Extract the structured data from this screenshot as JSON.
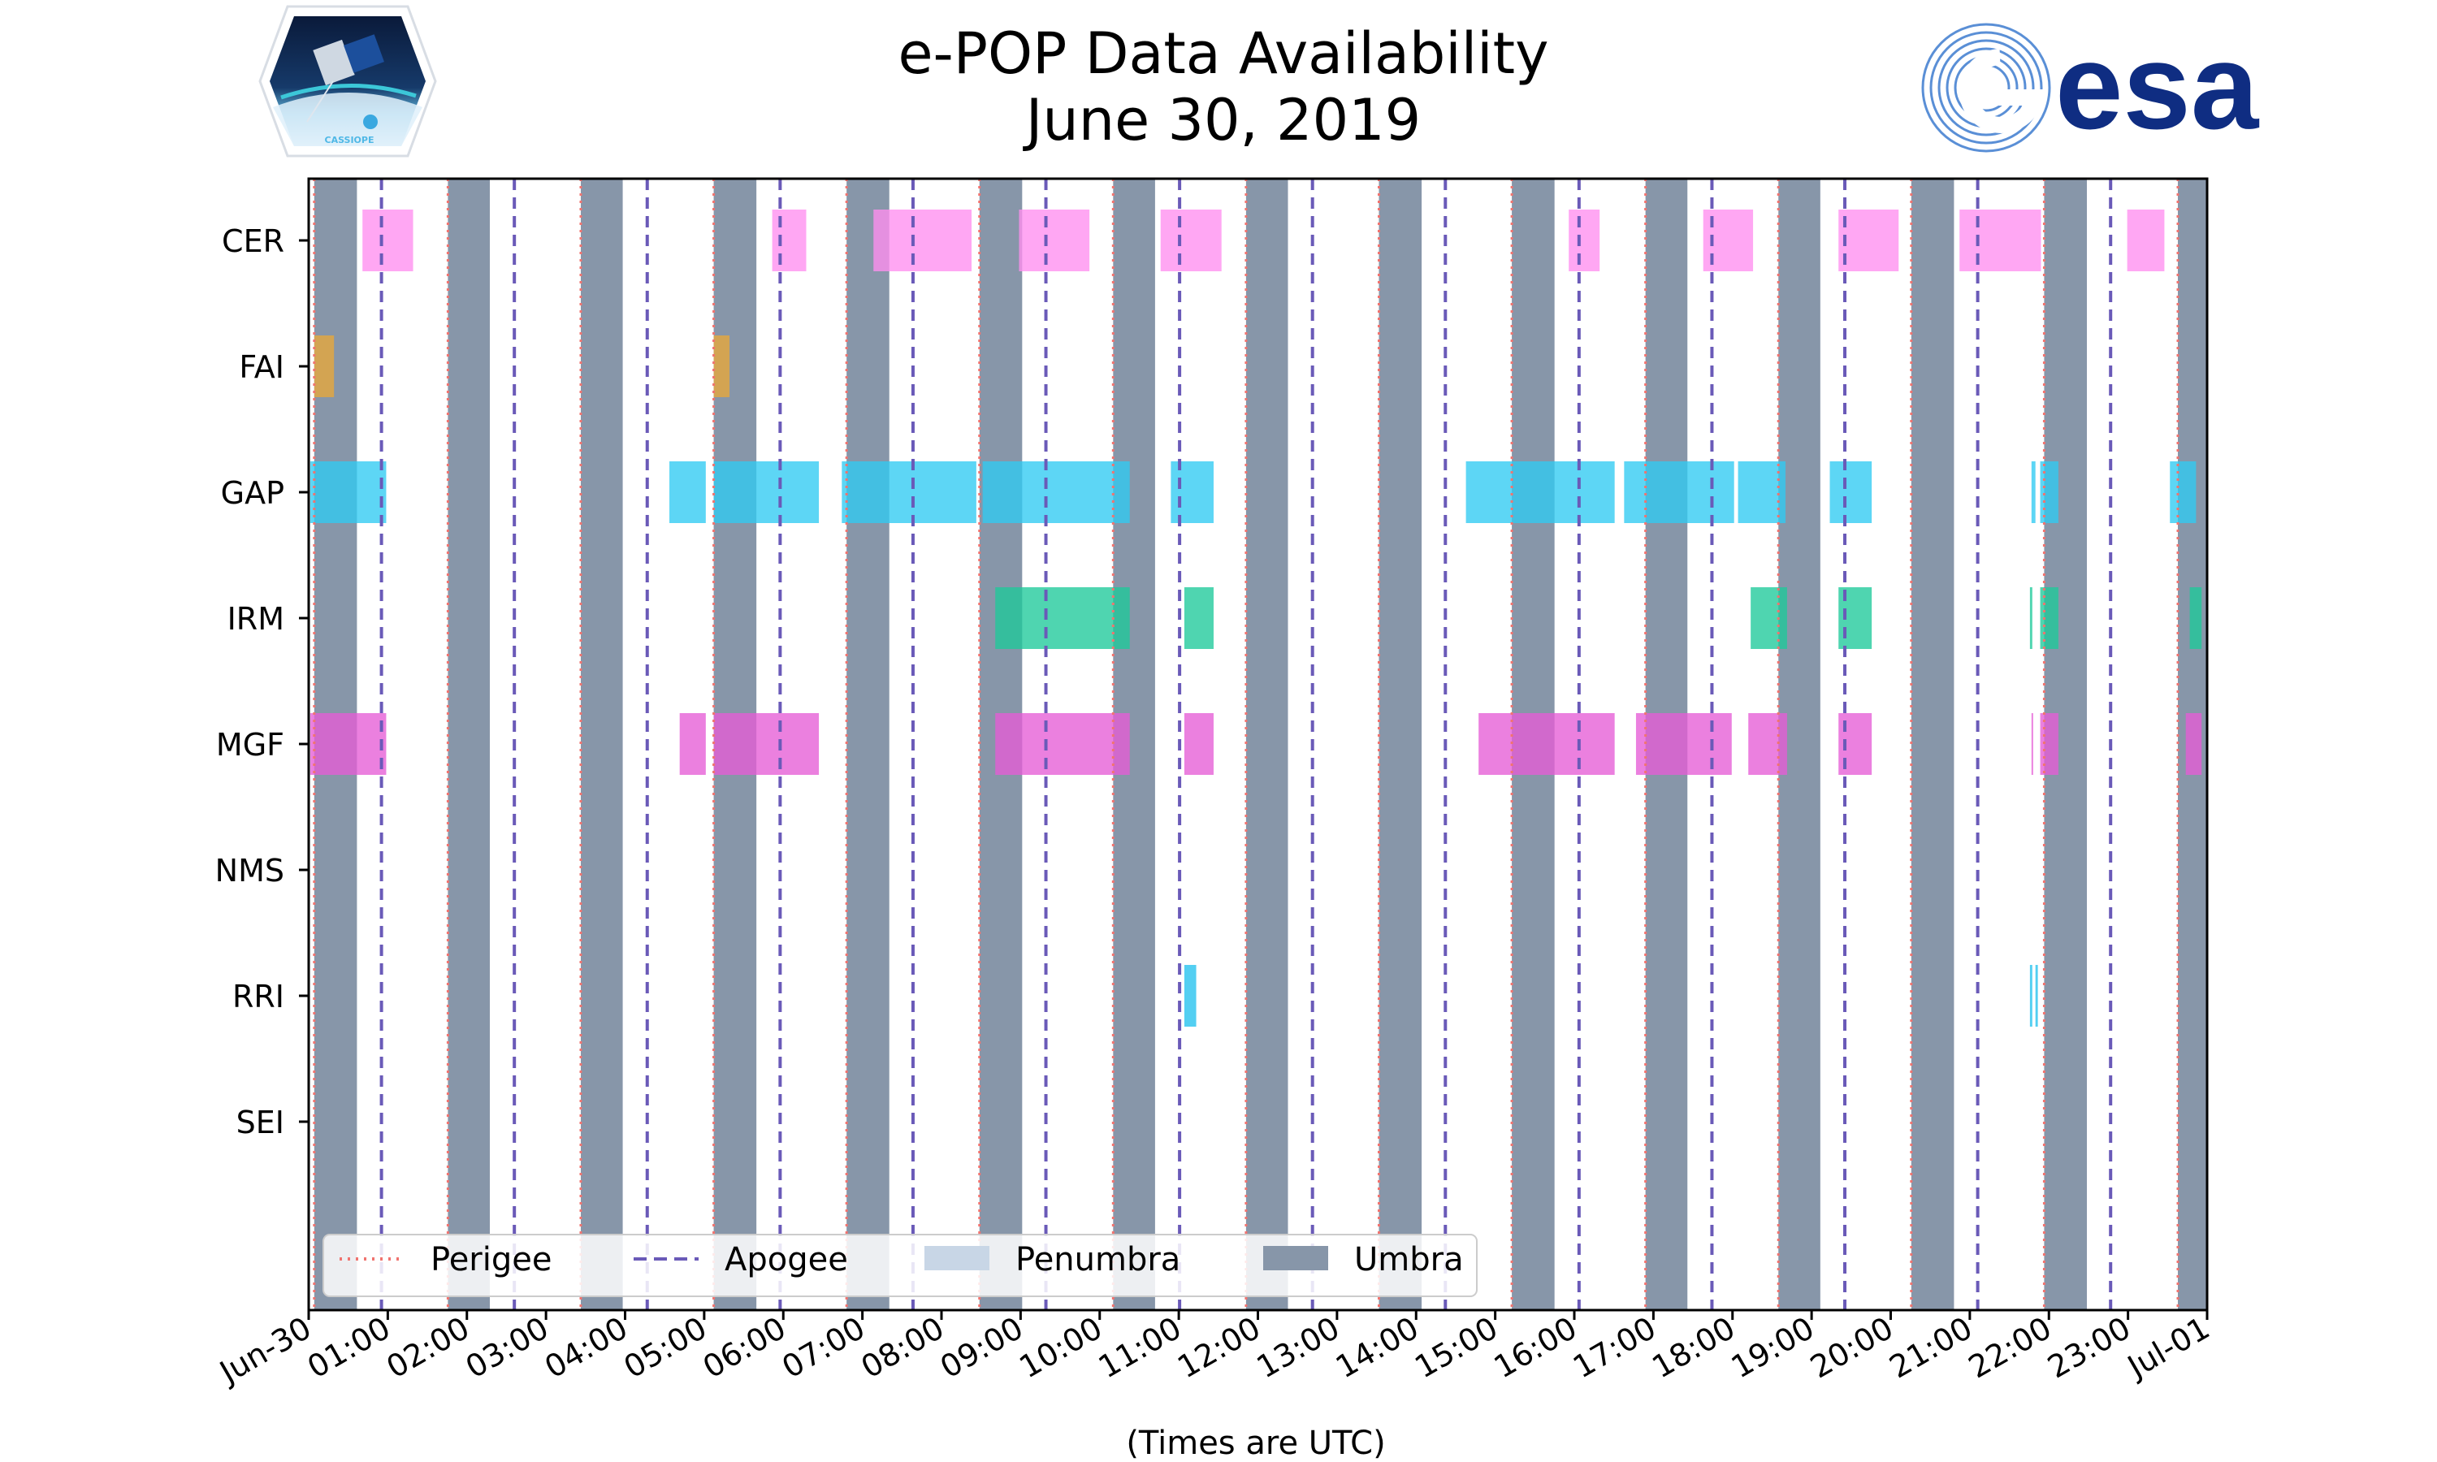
{
  "chart_data": {
    "type": "timeline",
    "title": "e-POP Data Availability",
    "subtitle": "June 30, 2019",
    "xlabel": "(Times are UTC)",
    "x_unit": "hours since 2019-06-30 00:00 UTC",
    "xlim": [
      0,
      24
    ],
    "x_ticks": [
      {
        "value": 0,
        "label": "Jun-30"
      },
      {
        "value": 1,
        "label": "01:00"
      },
      {
        "value": 2,
        "label": "02:00"
      },
      {
        "value": 3,
        "label": "03:00"
      },
      {
        "value": 4,
        "label": "04:00"
      },
      {
        "value": 5,
        "label": "05:00"
      },
      {
        "value": 6,
        "label": "06:00"
      },
      {
        "value": 7,
        "label": "07:00"
      },
      {
        "value": 8,
        "label": "08:00"
      },
      {
        "value": 9,
        "label": "09:00"
      },
      {
        "value": 10,
        "label": "10:00"
      },
      {
        "value": 11,
        "label": "11:00"
      },
      {
        "value": 12,
        "label": "12:00"
      },
      {
        "value": 13,
        "label": "13:00"
      },
      {
        "value": 14,
        "label": "14:00"
      },
      {
        "value": 15,
        "label": "15:00"
      },
      {
        "value": 16,
        "label": "16:00"
      },
      {
        "value": 17,
        "label": "17:00"
      },
      {
        "value": 18,
        "label": "18:00"
      },
      {
        "value": 19,
        "label": "19:00"
      },
      {
        "value": 20,
        "label": "20:00"
      },
      {
        "value": 21,
        "label": "21:00"
      },
      {
        "value": 22,
        "label": "22:00"
      },
      {
        "value": 23,
        "label": "23:00"
      },
      {
        "value": 24,
        "label": "Jul-01"
      }
    ],
    "instruments": [
      "CER",
      "FAI",
      "GAP",
      "IRM",
      "MGF",
      "NMS",
      "RRI",
      "SEI"
    ],
    "perigee": [
      0.07,
      1.76,
      3.44,
      5.12,
      6.8,
      8.48,
      10.17,
      11.85,
      13.53,
      15.21,
      16.9,
      18.58,
      20.26,
      21.94,
      23.63
    ],
    "apogee": [
      0.92,
      2.6,
      4.28,
      5.96,
      7.64,
      9.32,
      11.01,
      12.69,
      14.37,
      16.06,
      17.74,
      19.42,
      21.1,
      22.78
    ],
    "umbra": [
      [
        0.07,
        0.61
      ],
      [
        1.76,
        2.29
      ],
      [
        3.44,
        3.97
      ],
      [
        5.12,
        5.66
      ],
      [
        6.8,
        7.34
      ],
      [
        8.48,
        9.02
      ],
      [
        10.17,
        10.7
      ],
      [
        11.85,
        12.38
      ],
      [
        13.53,
        14.07
      ],
      [
        15.21,
        15.75
      ],
      [
        16.9,
        17.43
      ],
      [
        18.58,
        19.11
      ],
      [
        20.26,
        20.8
      ],
      [
        21.94,
        22.48
      ],
      [
        23.63,
        24.0
      ]
    ],
    "series": [
      {
        "name": "CER",
        "color": "#ff8ef0",
        "intervals": [
          [
            0.68,
            1.32
          ],
          [
            5.86,
            6.29
          ],
          [
            7.14,
            8.38
          ],
          [
            8.98,
            9.87
          ],
          [
            10.77,
            11.54
          ],
          [
            15.93,
            16.32
          ],
          [
            17.63,
            18.26
          ],
          [
            19.34,
            20.1
          ],
          [
            20.87,
            21.9
          ],
          [
            22.99,
            23.46
          ]
        ]
      },
      {
        "name": "FAI",
        "color": "#e8a83a",
        "intervals": [
          [
            0.07,
            0.32
          ],
          [
            5.12,
            5.32
          ]
        ]
      },
      {
        "name": "GAP",
        "color": "#2fcaf2",
        "intervals": [
          [
            0.02,
            0.98
          ],
          [
            4.56,
            5.02
          ],
          [
            5.12,
            6.45
          ],
          [
            6.74,
            8.44
          ],
          [
            8.52,
            10.38
          ],
          [
            10.9,
            11.44
          ],
          [
            14.63,
            16.51
          ],
          [
            16.63,
            18.02
          ],
          [
            18.07,
            18.67
          ],
          [
            19.23,
            19.76
          ],
          [
            21.78,
            21.83
          ],
          [
            21.89,
            22.12
          ],
          [
            23.53,
            23.86
          ]
        ]
      },
      {
        "name": "IRM",
        "color": "#1ec99a",
        "intervals": [
          [
            8.68,
            10.38
          ],
          [
            11.07,
            11.44
          ],
          [
            18.23,
            18.69
          ],
          [
            19.34,
            19.76
          ],
          [
            21.76,
            21.79
          ],
          [
            21.89,
            22.12
          ],
          [
            23.78,
            23.93
          ]
        ]
      },
      {
        "name": "MGF",
        "color": "#e65cd6",
        "intervals": [
          [
            0.02,
            0.98
          ],
          [
            4.69,
            5.02
          ],
          [
            5.12,
            6.45
          ],
          [
            8.68,
            10.38
          ],
          [
            11.07,
            11.44
          ],
          [
            14.79,
            16.51
          ],
          [
            16.78,
            17.99
          ],
          [
            18.2,
            18.69
          ],
          [
            19.34,
            19.76
          ],
          [
            21.78,
            21.79
          ],
          [
            21.89,
            22.12
          ],
          [
            23.73,
            23.93
          ]
        ]
      },
      {
        "name": "NMS",
        "color": "#888888",
        "intervals": []
      },
      {
        "name": "RRI",
        "color": "#22c2ee",
        "intervals": [
          [
            11.07,
            11.22
          ],
          [
            21.76,
            21.79
          ],
          [
            21.83,
            21.86
          ]
        ]
      },
      {
        "name": "SEI",
        "color": "#888888",
        "intervals": []
      }
    ],
    "legend": {
      "placement": "lower-left",
      "items": [
        {
          "label": "Perigee",
          "style": "dotted",
          "color": "#f07470"
        },
        {
          "label": "Apogee",
          "style": "dashed",
          "color": "#6a5ab8"
        },
        {
          "label": "Penumbra",
          "style": "patch",
          "color": "#c8d6e6"
        },
        {
          "label": "Umbra",
          "style": "patch",
          "color": "#8796a9"
        }
      ]
    },
    "colors": {
      "umbra": "#8796a9",
      "penumbra": "#c8d6e6",
      "perigee": "#f07470",
      "apogee": "#6a5ab8"
    }
  },
  "logos": {
    "left": {
      "label": "CASSIOPE"
    },
    "right": {
      "label": "esa"
    }
  }
}
